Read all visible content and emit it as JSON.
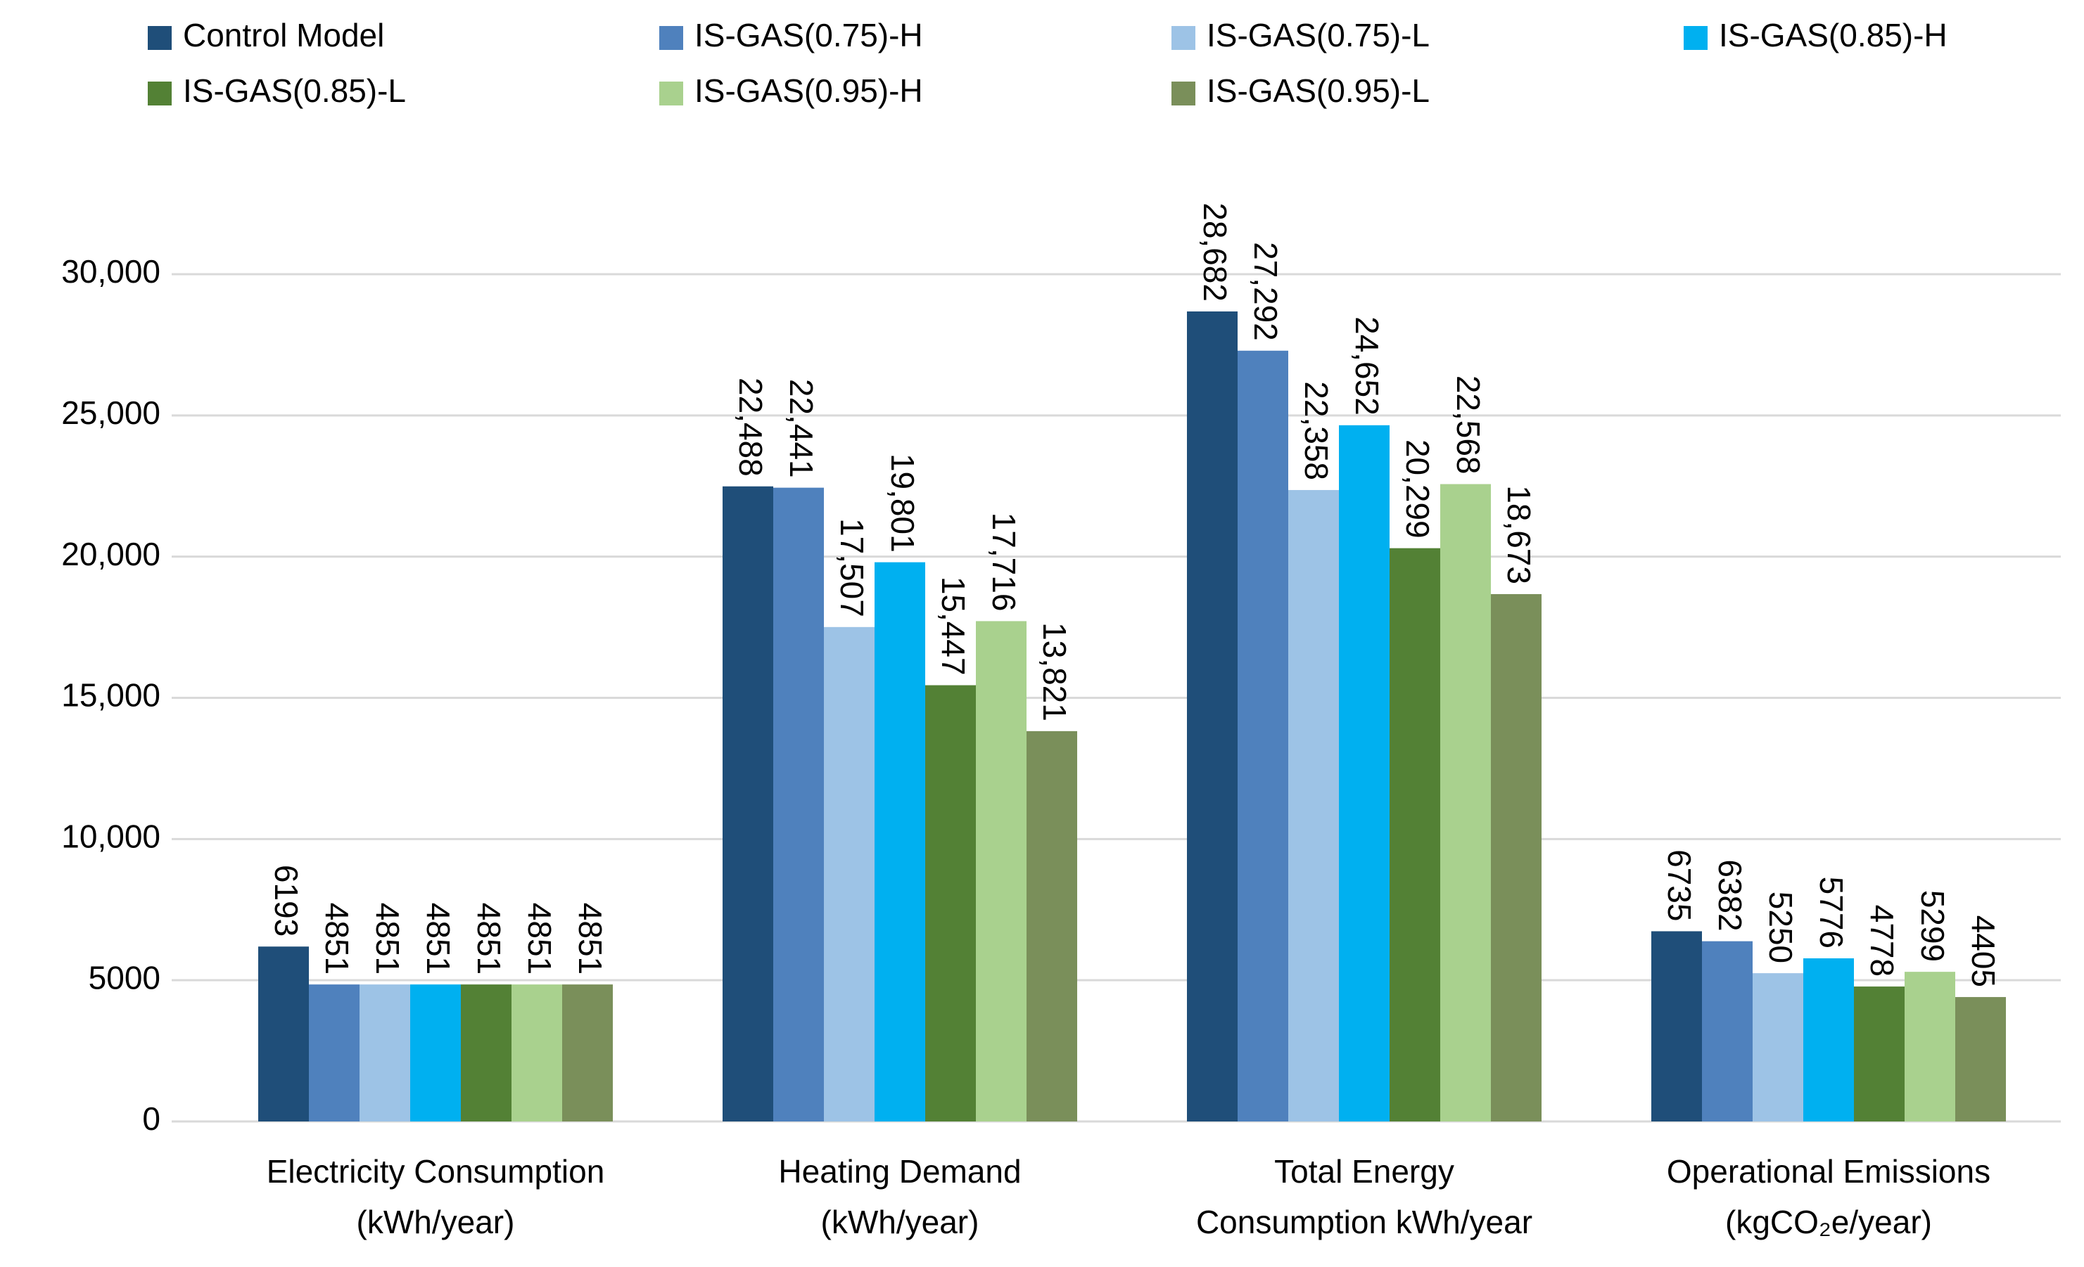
{
  "chart_data": {
    "type": "bar",
    "categories": [
      [
        "Electricity Consumption",
        "(kWh/year)"
      ],
      [
        "Heating Demand",
        "(kWh/year)"
      ],
      [
        "Total Energy",
        "Consumption kWh/year"
      ],
      [
        "Operational Emissions",
        "(kgCO₂e/year)"
      ]
    ],
    "series": [
      {
        "name": "Control Model",
        "color": "#1f4e79",
        "values": [
          6193,
          22488,
          28682,
          6735
        ],
        "value_labels": [
          "6193",
          "22,488",
          "28,682",
          "6735"
        ]
      },
      {
        "name": "IS-GAS(0.75)-H",
        "color": "#4f81bd",
        "values": [
          4851,
          22441,
          27292,
          6382
        ],
        "value_labels": [
          "4851",
          "22,441",
          "27,292",
          "6382"
        ]
      },
      {
        "name": "IS-GAS(0.75)-L",
        "color": "#9dc3e6",
        "values": [
          4851,
          17507,
          22358,
          5250
        ],
        "value_labels": [
          "4851",
          "17,507",
          "22,358",
          "5250"
        ]
      },
      {
        "name": "IS-GAS(0.85)-H",
        "color": "#00b0f0",
        "values": [
          4851,
          19801,
          24652,
          5776
        ],
        "value_labels": [
          "4851",
          "19,801",
          "24,652",
          "5776"
        ]
      },
      {
        "name": "IS-GAS(0.85)-L",
        "color": "#538135",
        "values": [
          4851,
          15447,
          20299,
          4778
        ],
        "value_labels": [
          "4851",
          "15,447",
          "20,299",
          "4778"
        ]
      },
      {
        "name": "IS-GAS(0.95)-H",
        "color": "#a9d18e",
        "values": [
          4851,
          17716,
          22568,
          5299
        ],
        "value_labels": [
          "4851",
          "17,716",
          "22,568",
          "5299"
        ]
      },
      {
        "name": "IS-GAS(0.95)-L",
        "color": "#7a8f5a",
        "values": [
          4851,
          13821,
          18673,
          4405
        ],
        "value_labels": [
          "4851",
          "13,821",
          "18,673",
          "4405"
        ]
      }
    ],
    "ylim": [
      0,
      30000
    ],
    "yticks": [
      0,
      5000,
      {
        "value": 10000,
        "label": "10,000"
      },
      {
        "value": 15000,
        "label": "15,000"
      },
      {
        "value": 20000,
        "label": "20,000"
      },
      {
        "value": 25000,
        "label": "25,000"
      },
      {
        "value": 30000,
        "label": "30,000"
      }
    ],
    "grid": true,
    "legend": "top"
  }
}
